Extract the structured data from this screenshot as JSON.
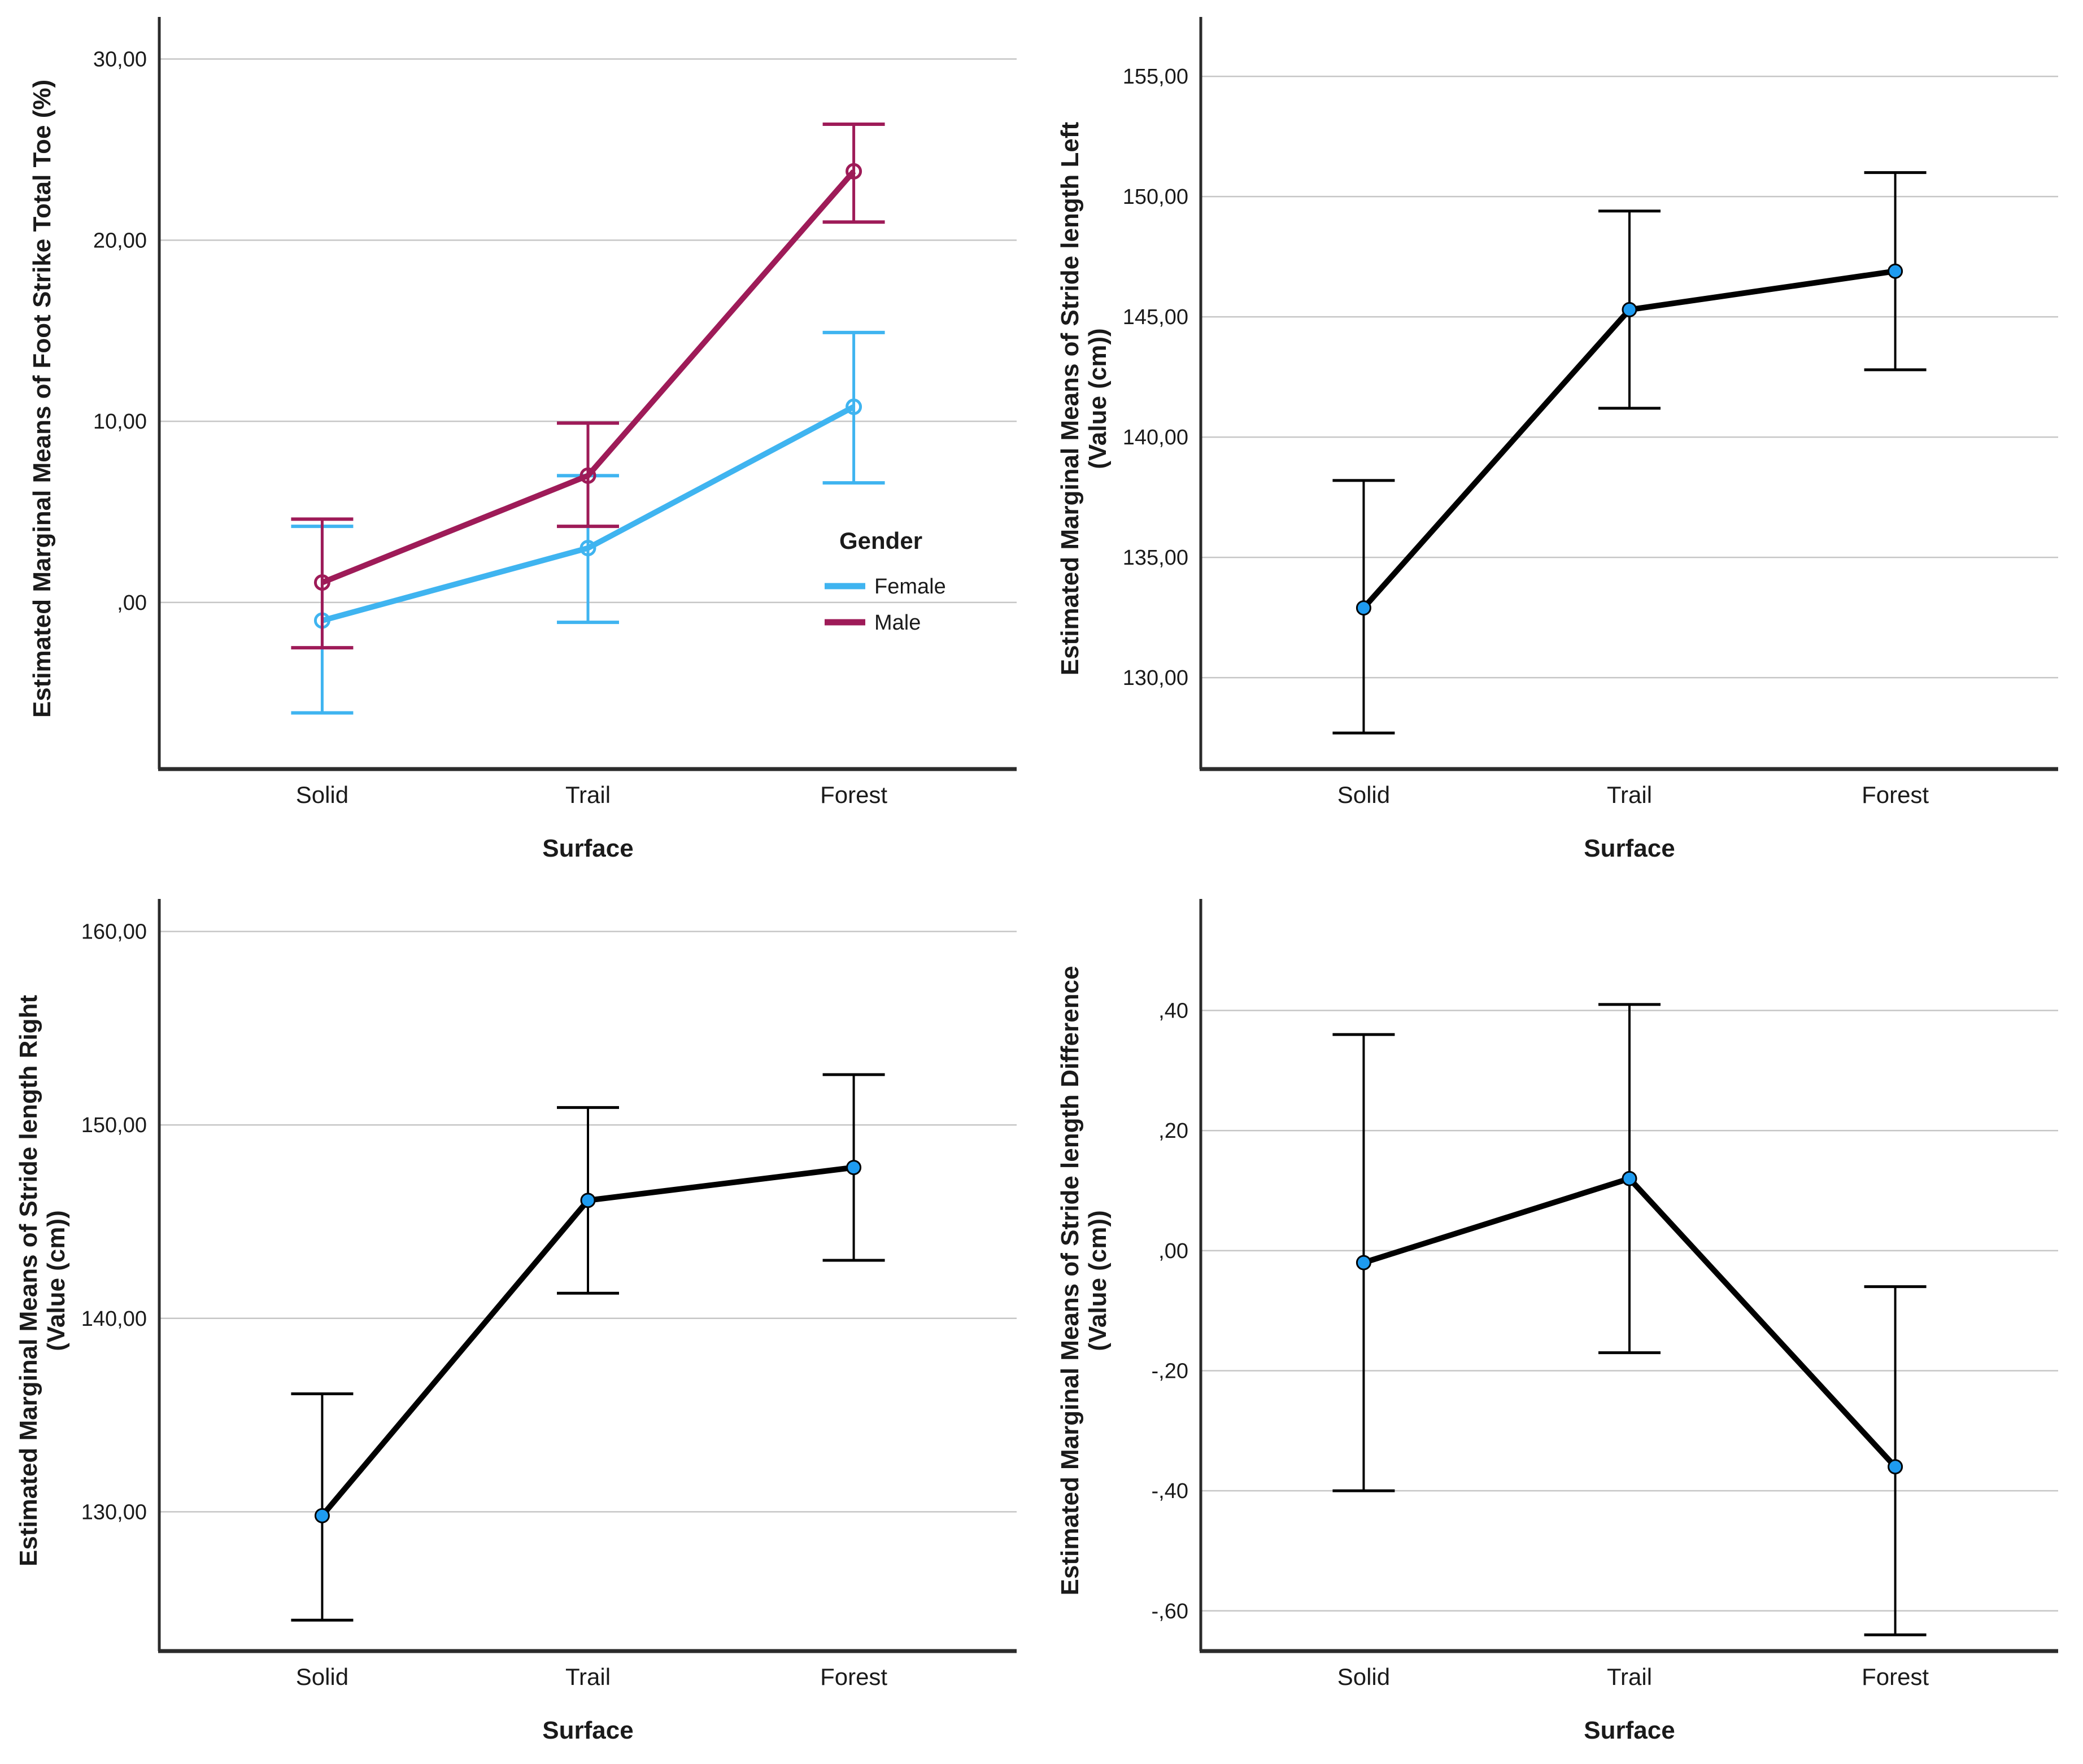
{
  "chart_data": [
    {
      "type": "line",
      "name": "foot-strike-total-toe",
      "ylabel_line1": "Estimated Marginal Means of Foot Strike Total Toe (%)",
      "ylabel_line2": "",
      "xlabel": "Surface",
      "categories": [
        "Solid",
        "Trail",
        "Forest"
      ],
      "ylim": [
        -9.2,
        31.7
      ],
      "grid": true,
      "yticks": [
        {
          "v": 30,
          "label": "30,00"
        },
        {
          "v": 20,
          "label": "20,00"
        },
        {
          "v": 10,
          "label": "10,00"
        },
        {
          "v": 0,
          "label": ",00"
        }
      ],
      "legend": {
        "title": "Gender",
        "position": "inside-right",
        "items": [
          {
            "label": "Female",
            "color": "#3FB4F0"
          },
          {
            "label": "Male",
            "color": "#9E1B58"
          }
        ]
      },
      "series": [
        {
          "name": "Female",
          "color": "#3FB4F0",
          "marker": "open-circle",
          "values": [
            -1.0,
            3.0,
            10.8
          ],
          "err_low": [
            -6.1,
            -1.1,
            6.6
          ],
          "err_high": [
            4.2,
            7.0,
            14.9
          ]
        },
        {
          "name": "Male",
          "color": "#9E1B58",
          "marker": "open-circle",
          "values": [
            1.1,
            7.0,
            23.8
          ],
          "err_low": [
            -2.5,
            4.2,
            21.0
          ],
          "err_high": [
            4.6,
            9.9,
            26.4
          ]
        }
      ]
    },
    {
      "type": "line",
      "name": "stride-length-left",
      "ylabel_line1": "Estimated Marginal Means of Stride length Left",
      "ylabel_line2": "(Value (cm))",
      "xlabel": "Surface",
      "categories": [
        "Solid",
        "Trail",
        "Forest"
      ],
      "ylim": [
        126.2,
        157.0
      ],
      "grid": true,
      "yticks": [
        {
          "v": 155,
          "label": "155,00"
        },
        {
          "v": 150,
          "label": "150,00"
        },
        {
          "v": 145,
          "label": "145,00"
        },
        {
          "v": 140,
          "label": "140,00"
        },
        {
          "v": 135,
          "label": "135,00"
        },
        {
          "v": 130,
          "label": "130,00"
        }
      ],
      "series": [
        {
          "name": "Estimated Marginal Mean",
          "color": "#000000",
          "marker": "filled-circle",
          "marker_color": "#1E9BF0",
          "values": [
            132.9,
            145.3,
            146.9
          ],
          "err_low": [
            127.7,
            141.2,
            142.8
          ],
          "err_high": [
            138.2,
            149.4,
            151.0
          ]
        }
      ]
    },
    {
      "type": "line",
      "name": "stride-length-right",
      "ylabel_line1": "Estimated Marginal Means of Stride length Right",
      "ylabel_line2": "(Value (cm))",
      "xlabel": "Surface",
      "categories": [
        "Solid",
        "Trail",
        "Forest"
      ],
      "ylim": [
        122.8,
        161.1
      ],
      "grid": true,
      "yticks": [
        {
          "v": 160,
          "label": "160,00"
        },
        {
          "v": 150,
          "label": "150,00"
        },
        {
          "v": 140,
          "label": "140,00"
        },
        {
          "v": 130,
          "label": "130,00"
        }
      ],
      "series": [
        {
          "name": "Estimated Marginal Mean",
          "color": "#000000",
          "marker": "filled-circle",
          "marker_color": "#1E9BF0",
          "values": [
            129.8,
            146.1,
            147.8
          ],
          "err_low": [
            124.4,
            141.3,
            143.0
          ],
          "err_high": [
            136.1,
            150.9,
            152.6
          ]
        }
      ]
    },
    {
      "type": "line",
      "name": "stride-length-difference",
      "ylabel_line1": "Estimated Marginal Means of Stride length Difference",
      "ylabel_line2": "(Value (cm))",
      "xlabel": "Surface",
      "categories": [
        "Solid",
        "Trail",
        "Forest"
      ],
      "ylim": [
        -0.667,
        0.567
      ],
      "grid": true,
      "yticks": [
        {
          "v": 0.4,
          "label": ",40"
        },
        {
          "v": 0.2,
          "label": ",20"
        },
        {
          "v": 0.0,
          "label": ",00"
        },
        {
          "v": -0.2,
          "label": "-,20"
        },
        {
          "v": -0.4,
          "label": "-,40"
        },
        {
          "v": -0.6,
          "label": "-,60"
        }
      ],
      "series": [
        {
          "name": "Estimated Marginal Mean",
          "color": "#000000",
          "marker": "filled-circle",
          "marker_color": "#1E9BF0",
          "values": [
            -0.02,
            0.12,
            -0.36
          ],
          "err_low": [
            -0.4,
            -0.17,
            -0.64
          ],
          "err_high": [
            0.36,
            0.41,
            -0.06
          ]
        }
      ]
    }
  ],
  "colors": {
    "female": "#3FB4F0",
    "male": "#9E1B58",
    "marker": "#1E9BF0",
    "gridline": "#C6C6C6",
    "axis": "#2B2B2B",
    "text": "#1A1A1A"
  }
}
